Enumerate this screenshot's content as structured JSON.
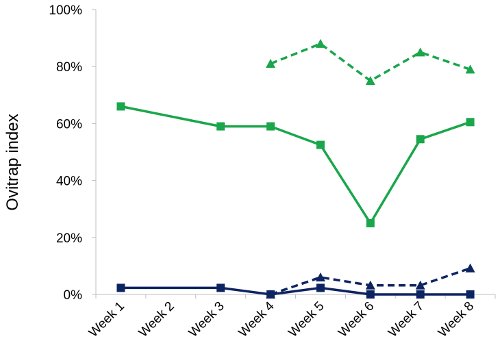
{
  "chart_data": {
    "type": "line",
    "title": "",
    "xlabel": "",
    "ylabel": "Ovitrap index",
    "categories": [
      "Week 1",
      "Week 2",
      "Week 3",
      "Week 4",
      "Week 5",
      "Week 6",
      "Week 7",
      "Week 8"
    ],
    "ylim": [
      0,
      100
    ],
    "yticks": [
      0,
      20,
      40,
      60,
      80,
      100
    ],
    "ytick_labels": [
      "0%",
      "20%",
      "40%",
      "60%",
      "80%",
      "100%"
    ],
    "grid": false,
    "legend": "none",
    "series": [
      {
        "color": "#1aa64b",
        "line": "solid",
        "marker": "square",
        "values": [
          66,
          null,
          59,
          59,
          52.5,
          25,
          54.5,
          60.5
        ]
      },
      {
        "color": "#1aa64b",
        "line": "dashed",
        "marker": "triangle",
        "values": [
          null,
          null,
          null,
          81,
          88,
          75,
          85,
          79
        ]
      },
      {
        "color": "#0d2461",
        "line": "solid",
        "marker": "square",
        "values": [
          2.3,
          null,
          2.3,
          0,
          2.3,
          0,
          0,
          0
        ]
      },
      {
        "color": "#0d2461",
        "line": "dashed",
        "marker": "triangle",
        "values": [
          null,
          null,
          null,
          0,
          6,
          3.2,
          3.2,
          9.2
        ]
      }
    ]
  }
}
